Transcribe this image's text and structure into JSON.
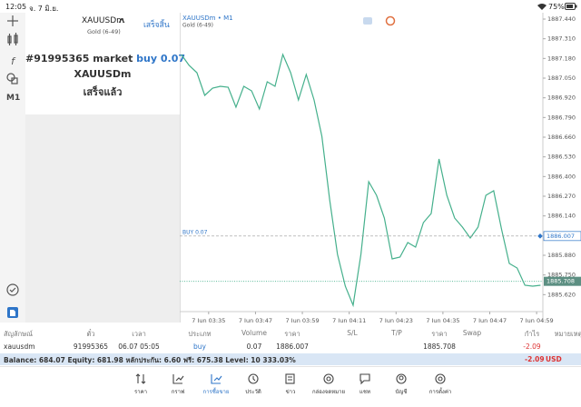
{
  "status_bar": {
    "time": "12:05",
    "date": "จ. 7 มิ.ย.",
    "battery": "75%"
  },
  "side_toolbar": {
    "timeframe": "M1"
  },
  "order_panel": {
    "symbol": "XAUUSDm",
    "description": "Gold (6-49)",
    "done_button": "เสร็จสิ้น",
    "message_prefix": "#91995365 market",
    "message_highlight": "buy 0.07",
    "message_symbol": "XAUUSDm",
    "message_status": "เสร็จแล้ว"
  },
  "chart_data": {
    "type": "line",
    "title": "XAUUSDm • M1",
    "subtitle": "Gold (6-49)",
    "color": "#45b08c",
    "x": [
      208,
      210,
      212,
      214,
      216,
      218,
      220,
      222,
      224,
      226,
      228,
      230,
      232,
      234,
      236,
      238,
      240,
      242,
      244,
      246,
      248,
      250,
      252,
      254,
      256,
      258,
      260,
      262,
      264,
      266,
      268,
      270,
      272,
      274,
      276,
      278,
      280,
      282,
      284,
      286,
      288,
      290,
      292,
      294,
      296,
      298,
      300
    ],
    "values": [
      1887.206,
      1887.134,
      1887.086,
      1886.936,
      1886.984,
      1886.996,
      1886.99,
      1886.858,
      1886.996,
      1886.966,
      1886.846,
      1887.026,
      1886.996,
      1887.206,
      1887.086,
      1886.906,
      1887.074,
      1886.906,
      1886.666,
      1886.246,
      1885.886,
      1885.676,
      1885.55,
      1885.886,
      1886.366,
      1886.276,
      1886.126,
      1885.856,
      1885.868,
      1885.964,
      1885.934,
      1886.096,
      1886.156,
      1886.516,
      1886.276,
      1886.126,
      1886.066,
      1885.994,
      1886.066,
      1886.276,
      1886.306,
      1886.054,
      1885.826,
      1885.796,
      1885.682,
      1885.676,
      1885.682
    ],
    "xlim": [
      207.6,
      300.6
    ],
    "xticks": [
      {
        "value": 215,
        "label": "7 Jun 03:35"
      },
      {
        "value": 227,
        "label": "7 Jun 03:47"
      },
      {
        "value": 239,
        "label": "7 Jun 03:59"
      },
      {
        "value": 251,
        "label": "7 Jun 04:11"
      },
      {
        "value": 263,
        "label": "7 Jun 04:23"
      },
      {
        "value": 275,
        "label": "7 Jun 04:35"
      },
      {
        "value": 287,
        "label": "7 Jun 04:47"
      },
      {
        "value": 299,
        "label": "7 Jun 04:59"
      }
    ],
    "ylim": [
      1885.508,
      1887.482
    ],
    "yticks": [
      {
        "value": 1887.44,
        "label": "1887.440"
      },
      {
        "value": 1887.31,
        "label": "1887.310"
      },
      {
        "value": 1887.18,
        "label": "1887.180"
      },
      {
        "value": 1887.05,
        "label": "1887.050"
      },
      {
        "value": 1886.92,
        "label": "1886.920"
      },
      {
        "value": 1886.79,
        "label": "1886.790"
      },
      {
        "value": 1886.66,
        "label": "1886.660"
      },
      {
        "value": 1886.53,
        "label": "1886.530"
      },
      {
        "value": 1886.4,
        "label": "1886.400"
      },
      {
        "value": 1886.27,
        "label": "1886.270"
      },
      {
        "value": 1886.14,
        "label": "1886.140"
      },
      {
        "value": 1885.88,
        "label": "1885.880"
      },
      {
        "value": 1885.75,
        "label": "1885.750"
      },
      {
        "value": 1885.62,
        "label": "1885.620"
      }
    ],
    "buy_line": {
      "label": "BUY 0.07",
      "value": 1886.007
    },
    "current_price": 1885.708
  },
  "table": {
    "headers": [
      "สัญลักษณ์",
      "ตั๋ว",
      "เวลา",
      "ประเภท",
      "Volume",
      "ราคา",
      "S/L",
      "T/P",
      "ราคา",
      "Swap",
      "กำไร",
      "หมายเหตุ"
    ],
    "rows": [
      [
        "xauusdm",
        "91995365",
        "06.07 05:05",
        "buy",
        "0.07",
        "1886.007",
        null,
        null,
        "1885.708",
        null,
        "-2.09",
        null
      ]
    ]
  },
  "balance": {
    "text": "Balance: 684.07 Equity: 681.98 หลักประกัน: 6.60 ฟรี: 675.38 Level: 10 333.03%",
    "profit": "-2.09",
    "currency": "USD"
  },
  "tabs": [
    "ราคา",
    "กราฟ",
    "การซื้อขาย",
    "ประวัติ",
    "ข่าว",
    "กล่องจดหมาย",
    "แชท",
    "บัญชี",
    "การตั้งค่า"
  ]
}
